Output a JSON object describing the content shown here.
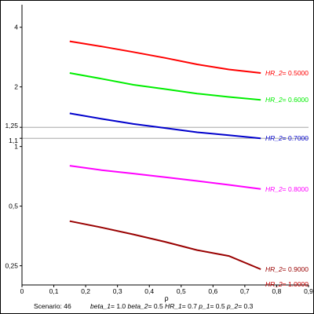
{
  "chart_data": {
    "type": "line",
    "title": "",
    "xlabel": "ρ",
    "ylabel": "",
    "xlim": [
      0,
      0.9
    ],
    "ylim": [
      0.2,
      5.2
    ],
    "y_scale": "log",
    "grid": false,
    "x_ticks": [
      0,
      0.1,
      0.2,
      0.3,
      0.4,
      0.5,
      0.6,
      0.7,
      0.8,
      0.9
    ],
    "x_tick_labels": [
      "0",
      "0,1",
      "0,2",
      "0,3",
      "0,4",
      "0,5",
      "0,6",
      "0,7",
      "0,8",
      "0,9"
    ],
    "y_ticks": [
      0.25,
      0.5,
      1,
      1.1,
      1.25,
      2,
      4
    ],
    "y_tick_labels": [
      "0,25",
      "0,5",
      "1",
      "1,1",
      "1,25",
      "2",
      "4"
    ],
    "reference_lines": [
      1.1,
      1.25
    ],
    "series": [
      {
        "name": "HR_2= 0.5000",
        "color": "#ff0000",
        "x": [
          0.15,
          0.25,
          0.35,
          0.45,
          0.55,
          0.65,
          0.75
        ],
        "y": [
          3.4,
          3.2,
          3.0,
          2.8,
          2.6,
          2.45,
          2.35
        ]
      },
      {
        "name": "HR_2= 0.6000",
        "color": "#00ee00",
        "x": [
          0.15,
          0.25,
          0.35,
          0.45,
          0.55,
          0.65,
          0.75
        ],
        "y": [
          2.35,
          2.2,
          2.05,
          1.95,
          1.85,
          1.78,
          1.72
        ]
      },
      {
        "name": "HR_2= 0.7000",
        "color": "#0000cc",
        "x": [
          0.15,
          0.25,
          0.35,
          0.45,
          0.55,
          0.65,
          0.75
        ],
        "y": [
          1.47,
          1.38,
          1.3,
          1.24,
          1.18,
          1.14,
          1.1
        ]
      },
      {
        "name": "HR_2= 0.8000",
        "color": "#ff00ff",
        "x": [
          0.15,
          0.25,
          0.35,
          0.45,
          0.55,
          0.65,
          0.75
        ],
        "y": [
          0.8,
          0.76,
          0.73,
          0.7,
          0.67,
          0.64,
          0.61
        ]
      },
      {
        "name": "HR_2= 0.9000",
        "color": "#990000",
        "x": [
          0.15,
          0.25,
          0.35,
          0.45,
          0.55,
          0.65,
          0.75
        ],
        "y": [
          0.42,
          0.39,
          0.36,
          0.33,
          0.3,
          0.28,
          0.24
        ]
      },
      {
        "name": "HR_2= 1.0000",
        "color": "#cc0000",
        "x": [],
        "y": []
      }
    ],
    "footer": {
      "scenario": "Scenario: 46",
      "params": [
        {
          "name": "beta_1",
          "value": "= 1.0"
        },
        {
          "name": "beta_2",
          "value": "= 0.5"
        },
        {
          "name": "HR_1",
          "value": "= 0.7"
        },
        {
          "name": "p_1",
          "value": "= 0.5"
        },
        {
          "name": "p_2",
          "value": "= 0.3"
        }
      ]
    }
  }
}
